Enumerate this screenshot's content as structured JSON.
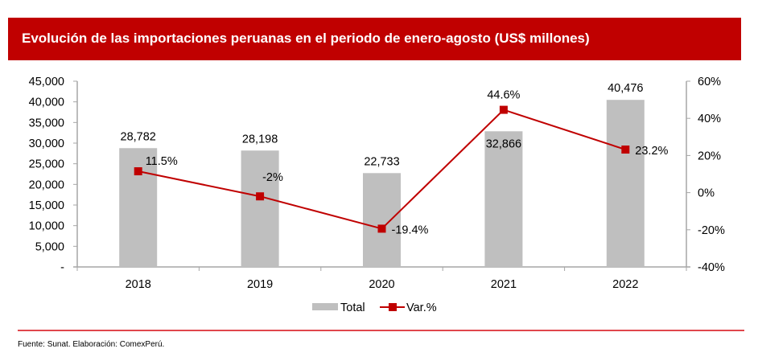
{
  "header": {
    "title": "Evolución de las importaciones peruanas en el periodo de enero-agosto (US$ millones)"
  },
  "footer": {
    "source": "Fuente: Sunat. Elaboración: ComexPerú."
  },
  "colors": {
    "title_bg": "#c00000",
    "bar": "#bfbfbf",
    "line": "#c00000",
    "footer_line": "#e0474c"
  },
  "chart_data": {
    "type": "bar",
    "title": "Evolución de las importaciones peruanas en el periodo de enero-agosto (US$ millones)",
    "categories": [
      "2018",
      "2019",
      "2020",
      "2021",
      "2022"
    ],
    "series": [
      {
        "name": "Total",
        "type": "bar",
        "axis": "left",
        "values": [
          28782,
          28198,
          22733,
          32866,
          40476
        ],
        "labels": [
          "28,782",
          "28,198",
          "22,733",
          "32,866",
          "40,476"
        ]
      },
      {
        "name": "Var.%",
        "type": "line",
        "axis": "right",
        "values": [
          11.5,
          -2,
          -19.4,
          44.6,
          23.2
        ],
        "labels": [
          "11.5%",
          "-2%",
          "-19.4%",
          "44.6%",
          "23.2%"
        ]
      }
    ],
    "y_left": {
      "range": [
        0,
        45000
      ],
      "ticks": [
        0,
        5000,
        10000,
        15000,
        20000,
        25000,
        30000,
        35000,
        40000,
        45000
      ],
      "tick_labels": [
        "-",
        "5,000",
        "10,000",
        "15,000",
        "20,000",
        "25,000",
        "30,000",
        "35,000",
        "40,000",
        "45,000"
      ]
    },
    "y_right": {
      "range": [
        -40,
        60
      ],
      "ticks": [
        -40,
        -20,
        0,
        20,
        40,
        60
      ],
      "tick_labels": [
        "-40%",
        "-20%",
        "0%",
        "20%",
        "40%",
        "60%"
      ]
    },
    "xlabel": "",
    "ylabel": "",
    "grid": false,
    "legend": {
      "position": "bottom",
      "entries": [
        "Total",
        "Var.%"
      ]
    }
  }
}
